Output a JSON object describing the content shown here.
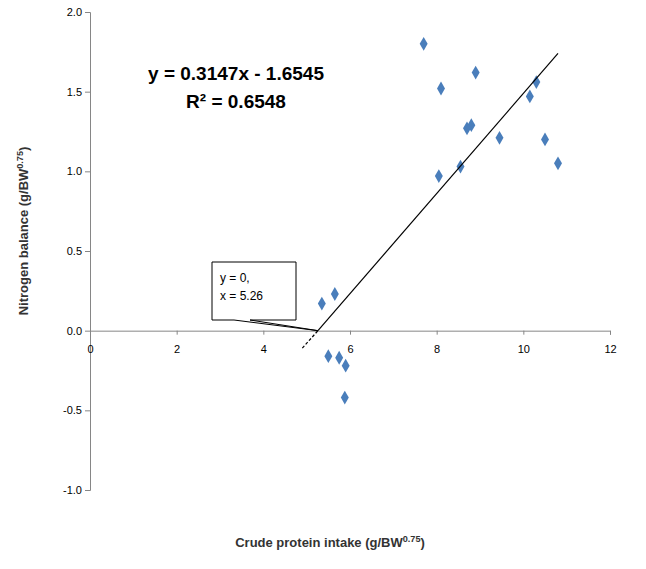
{
  "chart_data": {
    "type": "scatter",
    "x_label": "Crude protein intake (g/BW0.75)",
    "y_label": "Nitrogen balance (g/BW0.75)",
    "annotations": [
      "y = 0.3147x - 1.6545",
      "R² = 0.6548"
    ],
    "callout": [
      "y = 0,",
      "x = 5.26"
    ],
    "xlim": [
      0,
      12
    ],
    "xticks": [
      0,
      2,
      4,
      6,
      8,
      10,
      12
    ],
    "ylim": [
      -1,
      2
    ],
    "yticks": [
      {
        "value": -1,
        "label": "-1.0"
      },
      {
        "value": -0.5,
        "label": "-0.5"
      },
      {
        "value": 0,
        "label": "0.0"
      },
      {
        "value": 0.5,
        "label": "0.5"
      },
      {
        "value": 1,
        "label": "1.0"
      },
      {
        "value": 1.5,
        "label": "1.5"
      },
      {
        "value": 2,
        "label": "2.0"
      }
    ],
    "grid": false,
    "series": [
      {
        "type": "scatter",
        "color": "#4a7ebb",
        "marker": "diamond",
        "x": [
          7.7,
          8.9,
          8.1,
          10.3,
          10.15,
          8.8,
          8.7,
          9.45,
          10.5,
          10.8,
          8.55,
          8.05,
          5.35,
          5.65,
          5.5,
          5.75,
          5.9,
          5.88
        ],
        "values": [
          1.8,
          1.62,
          1.52,
          1.56,
          1.47,
          1.29,
          1.27,
          1.21,
          1.2,
          1.05,
          1.03,
          0.97,
          0.17,
          0.23,
          -0.16,
          -0.17,
          -0.22,
          -0.42
        ]
      },
      {
        "type": "line",
        "color": "#000000",
        "line_style": "solid",
        "x": [
          5.26,
          10.8
        ],
        "values": [
          0,
          1.74
        ]
      },
      {
        "type": "line",
        "color": "#000000",
        "line_style": "dashed",
        "x": [
          4.9,
          5.26
        ],
        "values": [
          -0.11,
          0
        ]
      }
    ]
  }
}
